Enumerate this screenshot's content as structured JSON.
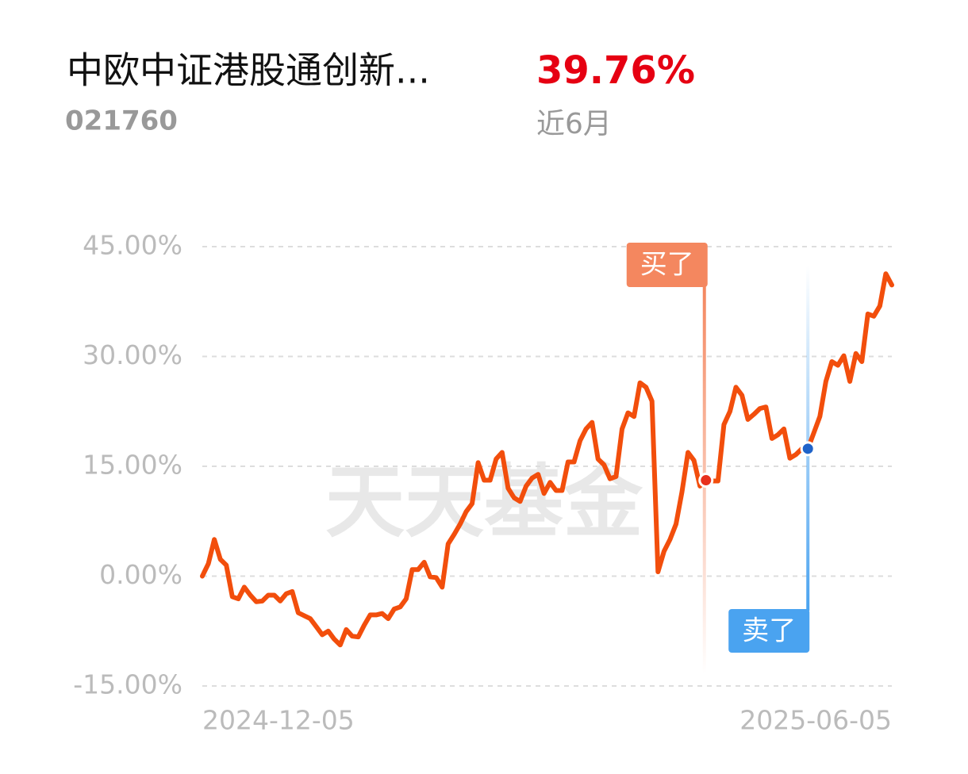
{
  "chart_data": {
    "type": "line",
    "title": "中欧中证港股通创新...",
    "subtitle": "021760",
    "return_label": "39.76%",
    "period": "近6月",
    "watermark": "天天基金",
    "annotations": [
      {
        "text": "买了"
      },
      {
        "text": "卖了"
      }
    ],
    "categories": [
      "2024-12-05",
      null,
      null,
      null,
      null,
      null,
      null,
      null,
      null,
      null,
      null,
      null,
      null,
      null,
      null,
      null,
      null,
      null,
      null,
      null,
      null,
      null,
      null,
      null,
      null,
      null,
      null,
      null,
      null,
      null,
      null,
      null,
      null,
      null,
      null,
      null,
      null,
      null,
      null,
      null,
      null,
      null,
      null,
      null,
      null,
      null,
      null,
      null,
      null,
      null,
      null,
      null,
      null,
      null,
      null,
      null,
      null,
      null,
      null,
      null,
      null,
      null,
      null,
      null,
      null,
      null,
      null,
      null,
      null,
      null,
      null,
      null,
      null,
      null,
      null,
      null,
      null,
      null,
      null,
      null,
      null,
      null,
      null,
      null,
      null,
      null,
      null,
      null,
      null,
      null,
      null,
      null,
      null,
      null,
      null,
      null,
      null,
      null,
      null,
      null,
      null,
      null,
      null,
      null,
      null,
      null,
      null,
      null,
      null,
      null,
      null,
      null,
      null,
      null,
      null,
      "2025-06-05"
    ],
    "series": [
      {
        "color": "#f24e0c",
        "values": [
          0,
          1.7,
          5.0,
          2.3,
          1.5,
          -2.8,
          -3.1,
          -1.5,
          -2.6,
          -3.5,
          -3.4,
          -2.6,
          -2.6,
          -3.4,
          -2.4,
          -2.1,
          -5.0,
          -5.4,
          -5.8,
          -6.9,
          -8.0,
          -7.5,
          -8.6,
          -9.4,
          -7.3,
          -8.2,
          -8.3,
          -6.7,
          -5.3,
          -5.3,
          -5.1,
          -5.8,
          -4.5,
          -4.2,
          -3.1,
          0.9,
          0.9,
          1.9,
          -0.1,
          -0.2,
          -1.5,
          4.4,
          5.7,
          7.1,
          8.8,
          9.9,
          15.5,
          13.1,
          13.1,
          16.0,
          16.9,
          12.0,
          10.7,
          10.2,
          12.3,
          13.4,
          13.9,
          11.3,
          12.8,
          11.7,
          11.7,
          15.6,
          15.6,
          18.5,
          20.1,
          21.0,
          16.0,
          15.2,
          13.3,
          13.6,
          20.1,
          22.3,
          21.8,
          26.4,
          25.8,
          23.9,
          0.6,
          3.4,
          5.0,
          7.1,
          11.5,
          16.9,
          15.8,
          12.3,
          13.1,
          13.0,
          13.0,
          20.7,
          22.5,
          25.8,
          24.7,
          21.4,
          22.1,
          22.9,
          23.1,
          18.8,
          19.3,
          20.1,
          16.1,
          16.6,
          17.4,
          17.4,
          19.6,
          21.8,
          26.6,
          29.3,
          28.8,
          30.1,
          26.6,
          30.4,
          29.3,
          35.8,
          35.5,
          36.9,
          41.3,
          39.76
        ]
      }
    ],
    "ylim": [
      -15,
      45
    ],
    "yticks": [
      {
        "value": -15,
        "label": "-15.00%"
      },
      {
        "value": 0,
        "label": "0.00%"
      },
      {
        "value": 15,
        "label": "15.00%"
      },
      {
        "value": 30,
        "label": "30.00%"
      },
      {
        "value": 45,
        "label": "45.00%"
      }
    ],
    "grid": true
  }
}
